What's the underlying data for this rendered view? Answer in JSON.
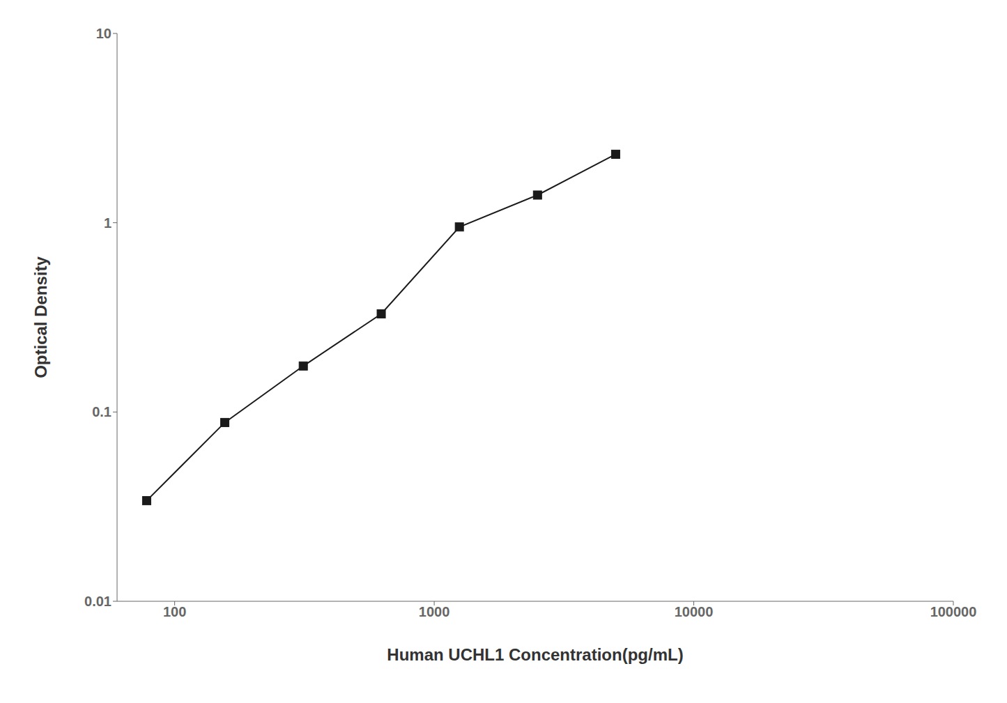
{
  "chart_data": {
    "type": "line",
    "x": [
      78,
      156,
      313,
      625,
      1250,
      2500,
      5000
    ],
    "values": [
      0.034,
      0.088,
      0.175,
      0.33,
      0.95,
      1.4,
      2.3
    ],
    "xlabel": "Human UCHL1 Concentration(pg/mL)",
    "ylabel": "Optical Density",
    "xlim": [
      60,
      100000
    ],
    "ylim": [
      0.01,
      10
    ],
    "xticks": [
      100,
      1000,
      10000,
      100000
    ],
    "yticks": [
      0.01,
      0.1,
      1,
      10
    ],
    "log": true,
    "grid": false,
    "color": "#1a1a1a",
    "marker": "square"
  }
}
